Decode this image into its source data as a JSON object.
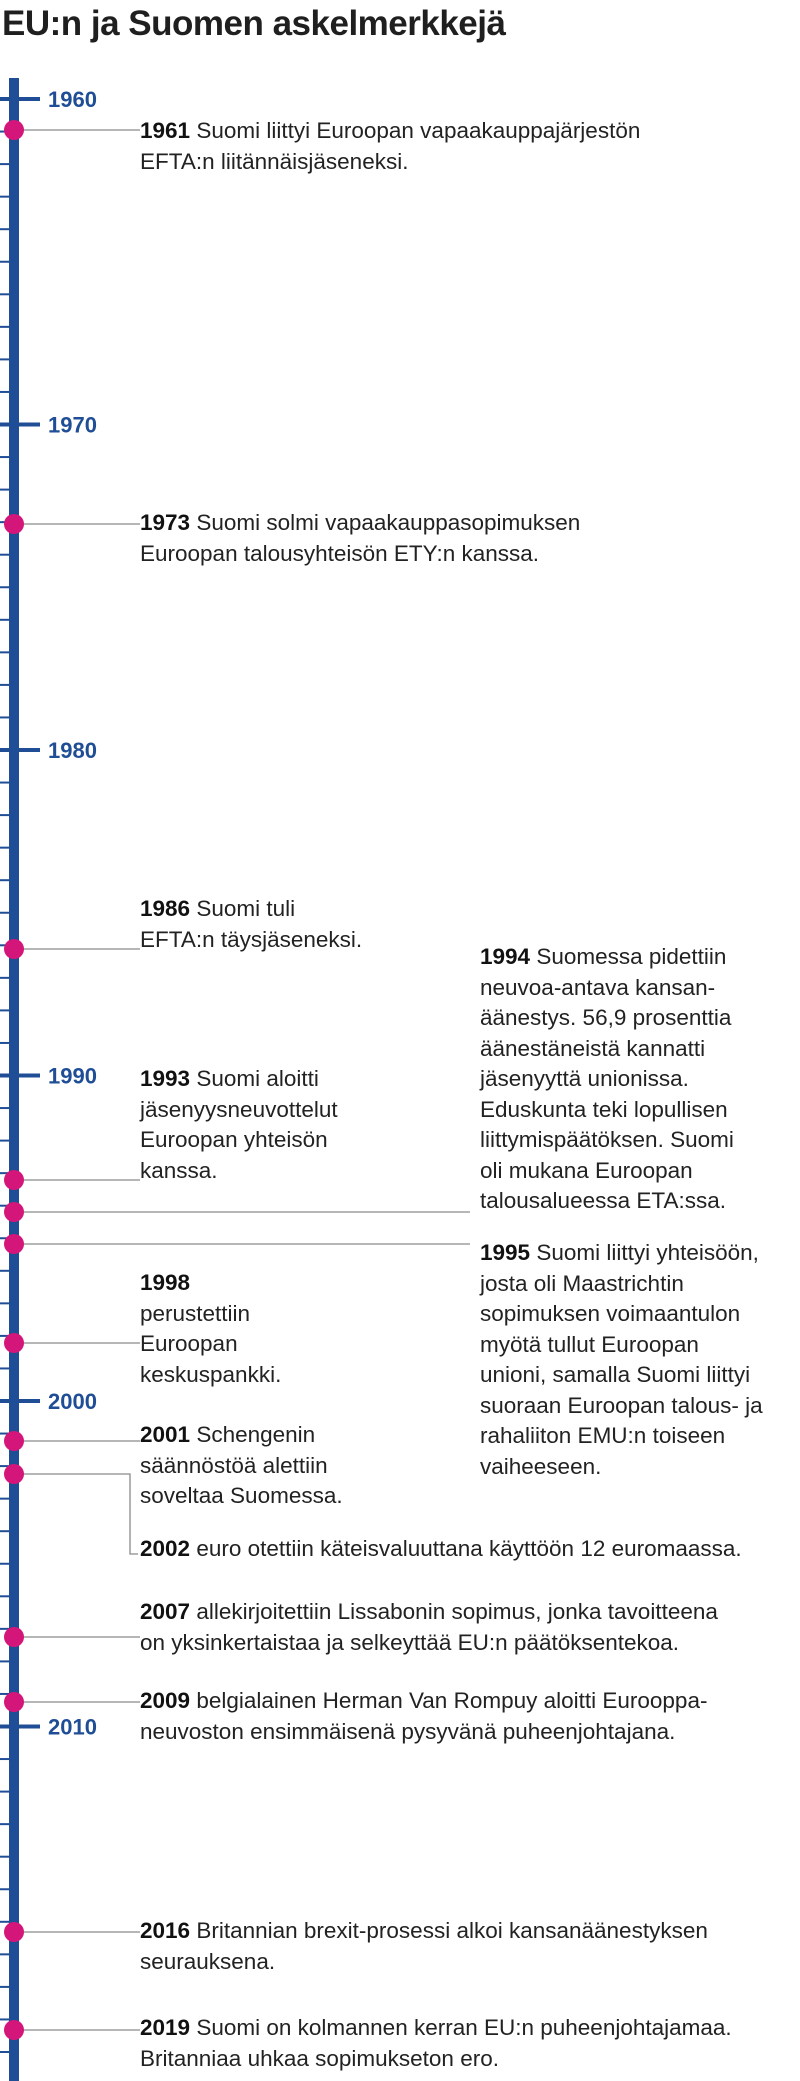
{
  "title": "EU:n ja Suomen askelmerkkejä",
  "colors": {
    "axis": "#1f4e96",
    "marker": "#d4167a",
    "leader": "#8a8a8a"
  },
  "decades": [
    "1960",
    "1970",
    "1980",
    "1990",
    "2000",
    "2010"
  ],
  "events": [
    {
      "year": "1961",
      "lines": [
        "Suomi liittyi Euroopan vapaakauppajärjestön",
        "EFTA:n liitännäisjäseneksi."
      ]
    },
    {
      "year": "1973",
      "lines": [
        "Suomi solmi vapaakauppasopimuksen",
        "Euroopan talousyhteisön ETY:n kanssa."
      ]
    },
    {
      "year": "1986",
      "lines": [
        "Suomi tuli",
        "EFTA:n täysjäseneksi."
      ]
    },
    {
      "year": "1993",
      "lines": [
        "Suomi aloitti",
        "jäsenyysneuvottelut",
        "Euroopan yhteisön",
        "kanssa."
      ]
    },
    {
      "year": "1994",
      "lines": [
        "Suomessa pidettiin",
        "neuvoa-antava kansan-",
        "äänestys. 56,9 prosenttia",
        "äänestäneistä kannatti",
        "jäsenyyttä unionissa.",
        "Eduskunta teki lopullisen",
        "liittymispäätöksen. Suomi",
        "oli mukana Euroopan",
        "talousalueessa ETA:ssa."
      ]
    },
    {
      "year": "1995",
      "lines": [
        "Suomi liittyi yhteisöön,",
        "josta oli Maastrichtin",
        "sopimuksen voimaantulon",
        "myötä tullut Euroopan",
        "unioni, samalla Suomi liittyi",
        "suoraan Euroopan talous- ja",
        "rahaliiton EMU:n toiseen",
        "vaiheeseen."
      ]
    },
    {
      "year": "1998",
      "lines": [
        "perustettiin",
        "Euroopan",
        "keskuspankki."
      ]
    },
    {
      "year": "2001",
      "lines": [
        "Schengenin",
        "säännöstöä alettiin",
        "soveltaa Suomessa."
      ]
    },
    {
      "year": "2002",
      "lines": [
        "euro otettiin käteisvaluuttana käyttöön 12 euromaassa."
      ]
    },
    {
      "year": "2007",
      "lines": [
        "allekirjoitettiin Lissabonin sopimus, jonka tavoitteena",
        "on yksinkertaistaa ja selkeyttää EU:n päätöksentekoa."
      ]
    },
    {
      "year": "2009",
      "lines": [
        "belgialainen Herman Van Rompuy aloitti Eurooppa-",
        "neuvoston ensimmäisenä pysyvänä puheenjohtajana."
      ]
    },
    {
      "year": "2016",
      "lines": [
        "Britannian brexit-prosessi alkoi kansanäänestyksen",
        "seurauksena."
      ]
    },
    {
      "year": "2019",
      "lines": [
        "Suomi on kolmannen kerran EU:n puheenjohtajamaa.",
        "Britanniaa uhkaa sopimukseton ero."
      ]
    }
  ]
}
